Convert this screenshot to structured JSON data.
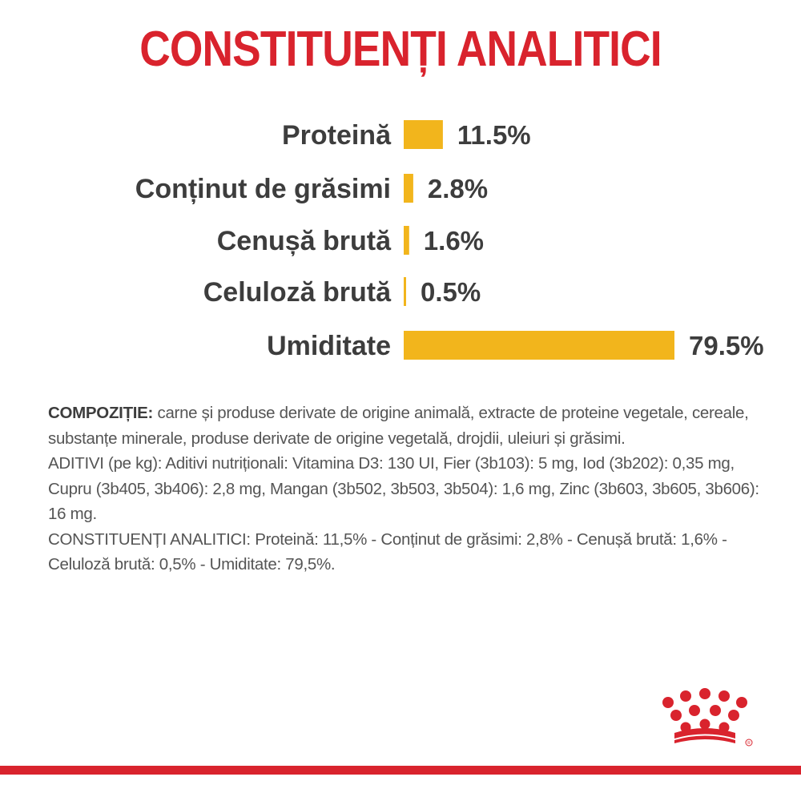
{
  "title": "CONSTITUENȚI ANALITICI",
  "chart_data": {
    "type": "bar",
    "orientation": "horizontal",
    "categories": [
      "Proteină",
      "Conținut de grăsimi",
      "Cenușă brută",
      "Celuloză brută",
      "Umiditate"
    ],
    "values": [
      11.5,
      2.8,
      1.6,
      0.5,
      79.5
    ],
    "value_labels": [
      "11.5%",
      "2.8%",
      "1.6%",
      "0.5%",
      "79.5%"
    ],
    "xlim": [
      0,
      79.5
    ],
    "grid": false,
    "bar_color": "#f2b51c"
  },
  "composition": {
    "lead": "COMPOZIȚIE:",
    "ingredients": " carne și produse derivate de origine animală, extracte de proteine vegetale, cereale, substanțe minerale, produse derivate de origine vegetală, drojdii, uleiuri și grăsimi.",
    "additives": "ADITIVI (pe kg): Aditivi nutriționali: Vitamina D3: 130 UI, Fier (3b103): 5  mg, Iod (3b202): 0,35  mg, Cupru (3b405, 3b406): 2,8  mg, Mangan (3b502, 3b503, 3b504): 1,6  mg, Zinc (3b603, 3b605, 3b606): 16  mg.",
    "analytic": "CONSTITUENȚI ANALITICI: Proteină: 11,5% - Conținut de grăsimi: 2,8% - Cenușă brută: 1,6% - Celuloză brută: 0,5% - Umiditate: 79,5%."
  },
  "brand": {
    "logo_icon": "crown-icon",
    "primary_color": "#d9232d"
  }
}
